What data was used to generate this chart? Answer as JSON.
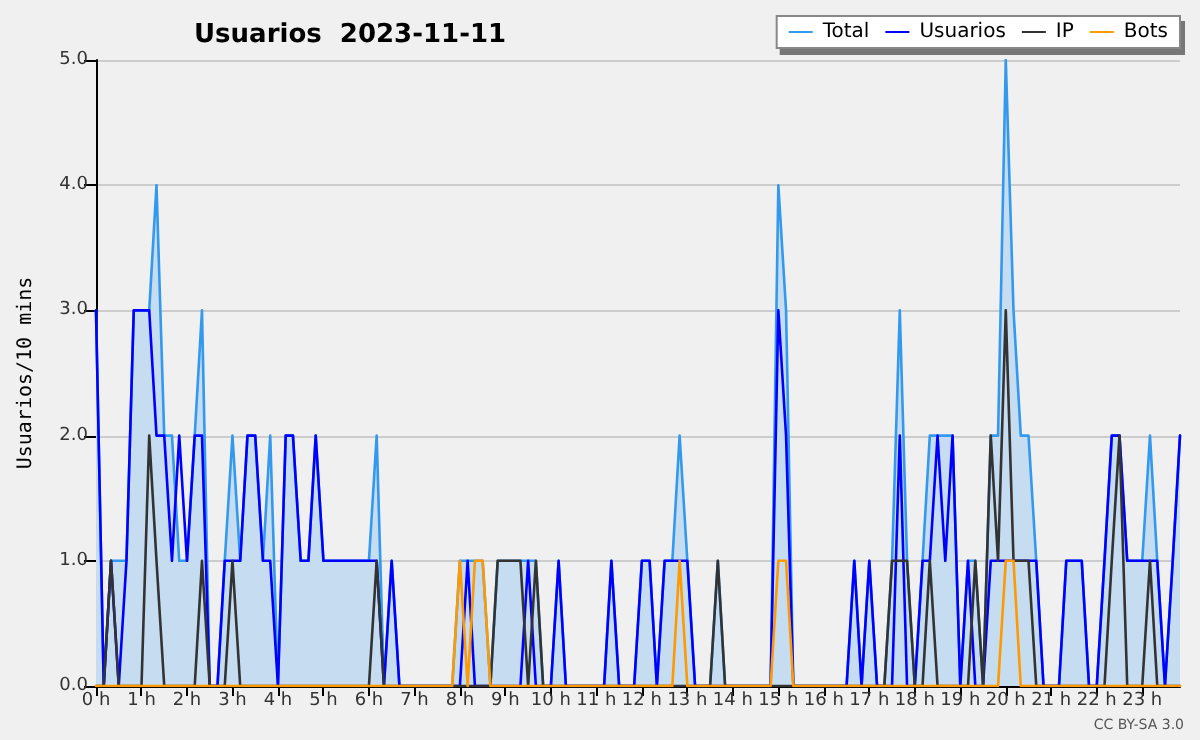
{
  "chart_data": {
    "type": "line",
    "title": "Usuarios  2023-11-11",
    "ylabel": "Usuarios/10 mins",
    "annotations": [
      "CC BY-SA 3.0"
    ],
    "x": [
      0,
      0.17,
      0.33,
      0.5,
      0.67,
      0.83,
      1,
      1.17,
      1.33,
      1.5,
      1.67,
      1.83,
      2,
      2.17,
      2.33,
      2.5,
      2.67,
      2.83,
      3,
      3.17,
      3.33,
      3.5,
      3.67,
      3.83,
      4,
      4.17,
      4.33,
      4.5,
      4.67,
      4.83,
      5,
      5.17,
      5.33,
      5.5,
      5.67,
      5.83,
      6,
      6.17,
      6.33,
      6.5,
      6.67,
      6.83,
      7,
      7.17,
      7.33,
      7.5,
      7.67,
      7.83,
      8,
      8.17,
      8.33,
      8.5,
      8.67,
      8.83,
      9,
      9.17,
      9.33,
      9.5,
      9.67,
      9.83,
      10,
      10.17,
      10.33,
      10.5,
      10.67,
      10.83,
      11,
      11.17,
      11.33,
      11.5,
      11.67,
      11.83,
      12,
      12.17,
      12.33,
      12.5,
      12.67,
      12.83,
      13,
      13.17,
      13.33,
      13.5,
      13.67,
      13.83,
      14,
      14.17,
      14.33,
      14.5,
      14.67,
      14.83,
      15,
      15.17,
      15.33,
      15.5,
      15.67,
      15.83,
      16,
      16.17,
      16.33,
      16.5,
      16.67,
      16.83,
      17,
      17.17,
      17.33,
      17.5,
      17.67,
      17.83,
      18,
      18.17,
      18.33,
      18.5,
      18.67,
      18.83,
      19,
      19.17,
      19.33,
      19.5,
      19.67,
      19.83,
      20,
      20.17,
      20.33,
      20.5,
      20.67,
      20.83,
      21,
      21.17,
      21.33,
      21.5,
      21.67,
      21.83,
      22,
      22.17,
      22.33,
      22.5,
      22.67,
      22.83,
      23,
      23.17,
      23.33,
      23.5,
      23.67,
      23.83
    ],
    "series": [
      {
        "name": "Total",
        "type": "area",
        "color": "#3399ee",
        "values": [
          3,
          0,
          1,
          1,
          1,
          3,
          3,
          3,
          4,
          2,
          2,
          1,
          1,
          2,
          3,
          0,
          0,
          1,
          2,
          1,
          2,
          2,
          1,
          2,
          0,
          2,
          2,
          1,
          1,
          2,
          1,
          1,
          1,
          1,
          1,
          1,
          1,
          2,
          0,
          1,
          0,
          0,
          0,
          0,
          0,
          0,
          0,
          0,
          1,
          1,
          1,
          1,
          0,
          1,
          1,
          1,
          1,
          1,
          1,
          0,
          0,
          1,
          0,
          0,
          0,
          0,
          0,
          0,
          1,
          0,
          0,
          0,
          1,
          1,
          0,
          1,
          1,
          2,
          1,
          0,
          0,
          0,
          1,
          0,
          0,
          0,
          0,
          0,
          0,
          0,
          4,
          3,
          0,
          0,
          0,
          0,
          0,
          0,
          0,
          0,
          1,
          0,
          1,
          0,
          0,
          1,
          3,
          1,
          0,
          1,
          2,
          2,
          2,
          2,
          0,
          1,
          1,
          0,
          2,
          2,
          5,
          3,
          2,
          2,
          1,
          0,
          0,
          0,
          1,
          1,
          1,
          0,
          0,
          1,
          2,
          2,
          1,
          1,
          1,
          2,
          1,
          0,
          1,
          2
        ]
      },
      {
        "name": "Usuarios",
        "color": "#0000ff",
        "values": [
          3,
          0,
          1,
          0,
          1,
          3,
          3,
          3,
          2,
          2,
          1,
          2,
          1,
          2,
          2,
          0,
          0,
          1,
          1,
          1,
          2,
          2,
          1,
          1,
          0,
          2,
          2,
          1,
          1,
          2,
          1,
          1,
          1,
          1,
          1,
          1,
          1,
          1,
          0,
          1,
          0,
          0,
          0,
          0,
          0,
          0,
          0,
          0,
          0,
          1,
          0,
          0,
          0,
          0,
          0,
          0,
          0,
          1,
          0,
          0,
          0,
          1,
          0,
          0,
          0,
          0,
          0,
          0,
          1,
          0,
          0,
          0,
          1,
          1,
          0,
          1,
          1,
          1,
          1,
          0,
          0,
          0,
          0,
          0,
          0,
          0,
          0,
          0,
          0,
          0,
          3,
          2,
          0,
          0,
          0,
          0,
          0,
          0,
          0,
          0,
          1,
          0,
          1,
          0,
          0,
          0,
          2,
          0,
          0,
          1,
          1,
          2,
          1,
          2,
          0,
          1,
          0,
          0,
          1,
          1,
          1,
          1,
          1,
          1,
          1,
          0,
          0,
          0,
          1,
          1,
          1,
          0,
          0,
          1,
          2,
          2,
          1,
          1,
          1,
          1,
          1,
          0,
          1,
          2
        ]
      },
      {
        "name": "IP",
        "color": "#333333",
        "values": [
          0,
          0,
          1,
          0,
          0,
          0,
          0,
          2,
          1,
          0,
          0,
          0,
          0,
          0,
          1,
          0,
          0,
          0,
          1,
          0,
          0,
          0,
          0,
          0,
          0,
          0,
          0,
          0,
          0,
          0,
          0,
          0,
          0,
          0,
          0,
          0,
          0,
          1,
          0,
          0,
          0,
          0,
          0,
          0,
          0,
          0,
          0,
          0,
          0,
          0,
          0,
          0,
          0,
          1,
          1,
          1,
          1,
          0,
          1,
          0,
          0,
          0,
          0,
          0,
          0,
          0,
          0,
          0,
          0,
          0,
          0,
          0,
          0,
          0,
          0,
          0,
          0,
          0,
          0,
          0,
          0,
          0,
          1,
          0,
          0,
          0,
          0,
          0,
          0,
          0,
          0,
          0,
          0,
          0,
          0,
          0,
          0,
          0,
          0,
          0,
          0,
          0,
          0,
          0,
          0,
          1,
          1,
          1,
          0,
          0,
          1,
          0,
          0,
          0,
          0,
          0,
          1,
          0,
          2,
          1,
          3,
          1,
          1,
          1,
          0,
          0,
          0,
          0,
          0,
          0,
          0,
          0,
          0,
          0,
          1,
          2,
          0,
          0,
          0,
          1,
          0,
          0,
          0,
          0
        ]
      },
      {
        "name": "Bots",
        "color": "#ff9900",
        "values": [
          0,
          0,
          0,
          0,
          0,
          0,
          0,
          0,
          0,
          0,
          0,
          0,
          0,
          0,
          0,
          0,
          0,
          0,
          0,
          0,
          0,
          0,
          0,
          0,
          0,
          0,
          0,
          0,
          0,
          0,
          0,
          0,
          0,
          0,
          0,
          0,
          0,
          0,
          0,
          0,
          0,
          0,
          0,
          0,
          0,
          0,
          0,
          0,
          1,
          0,
          1,
          1,
          0,
          0,
          0,
          0,
          0,
          0,
          0,
          0,
          0,
          0,
          0,
          0,
          0,
          0,
          0,
          0,
          0,
          0,
          0,
          0,
          0,
          0,
          0,
          0,
          0,
          1,
          0,
          0,
          0,
          0,
          0,
          0,
          0,
          0,
          0,
          0,
          0,
          0,
          1,
          1,
          0,
          0,
          0,
          0,
          0,
          0,
          0,
          0,
          0,
          0,
          0,
          0,
          0,
          0,
          0,
          0,
          0,
          0,
          0,
          0,
          0,
          0,
          0,
          0,
          0,
          0,
          0,
          0,
          1,
          1,
          0,
          0,
          0,
          0,
          0,
          0,
          0,
          0,
          0,
          0,
          0,
          0,
          0,
          0,
          0,
          0,
          0,
          0,
          0,
          0,
          0,
          0
        ]
      }
    ],
    "xlim": [
      0,
      23.83
    ],
    "xticks": [
      {
        "value": 0,
        "label": "0 h"
      },
      {
        "value": 1,
        "label": "1 h"
      },
      {
        "value": 2,
        "label": "2 h"
      },
      {
        "value": 3,
        "label": "3 h"
      },
      {
        "value": 4,
        "label": "4 h"
      },
      {
        "value": 5,
        "label": "5 h"
      },
      {
        "value": 6,
        "label": "6 h"
      },
      {
        "value": 7,
        "label": "7 h"
      },
      {
        "value": 8,
        "label": "8 h"
      },
      {
        "value": 9,
        "label": "9 h"
      },
      {
        "value": 10,
        "label": "10 h"
      },
      {
        "value": 11,
        "label": "11 h"
      },
      {
        "value": 12,
        "label": "12 h"
      },
      {
        "value": 13,
        "label": "13 h"
      },
      {
        "value": 14,
        "label": "14 h"
      },
      {
        "value": 15,
        "label": "15 h"
      },
      {
        "value": 16,
        "label": "16 h"
      },
      {
        "value": 17,
        "label": "17 h"
      },
      {
        "value": 18,
        "label": "18 h"
      },
      {
        "value": 19,
        "label": "19 h"
      },
      {
        "value": 20,
        "label": "20 h"
      },
      {
        "value": 21,
        "label": "21 h"
      },
      {
        "value": 22,
        "label": "22 h"
      },
      {
        "value": 23,
        "label": "23 h"
      }
    ],
    "ylim": [
      0,
      5
    ],
    "yticks": [
      {
        "value": 0,
        "label": "0.0"
      },
      {
        "value": 1,
        "label": "1.0"
      },
      {
        "value": 2,
        "label": "2.0"
      },
      {
        "value": 3,
        "label": "3.0"
      },
      {
        "value": 4,
        "label": "4.0"
      },
      {
        "value": 5,
        "label": "5.0"
      }
    ],
    "grid": "y",
    "legend": "top right",
    "marker": "none",
    "line_style": "solid"
  }
}
